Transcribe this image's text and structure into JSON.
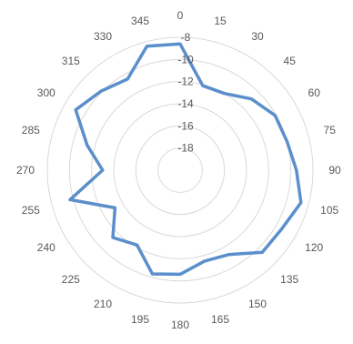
{
  "chart_data": {
    "type": "radar",
    "title": "",
    "angle_labels": [
      "0",
      "15",
      "30",
      "45",
      "60",
      "75",
      "90",
      "105",
      "120",
      "135",
      "150",
      "165",
      "180",
      "195",
      "210",
      "225",
      "240",
      "255",
      "270",
      "285",
      "300",
      "315",
      "330",
      "345"
    ],
    "radial_labels": [
      "-8",
      "-10",
      "-12",
      "-14",
      "-16",
      "-18"
    ],
    "radial_range": [
      -20,
      -8
    ],
    "grid": true,
    "series": [
      {
        "color": "#5b8fcb",
        "values": [
          -8.6,
          -12.1,
          -12.0,
          -10.9,
          -10.1,
          -10.0,
          -9.5,
          -8.7,
          -9.4,
          -9.5,
          -11.2,
          -11.5,
          -10.6,
          -10.3,
          -12.2,
          -11.4,
          -13.2,
          -9.7,
          -13.0,
          -11.3,
          -9.1,
          -9.9,
          -10.5,
          -8.4
        ]
      }
    ]
  }
}
